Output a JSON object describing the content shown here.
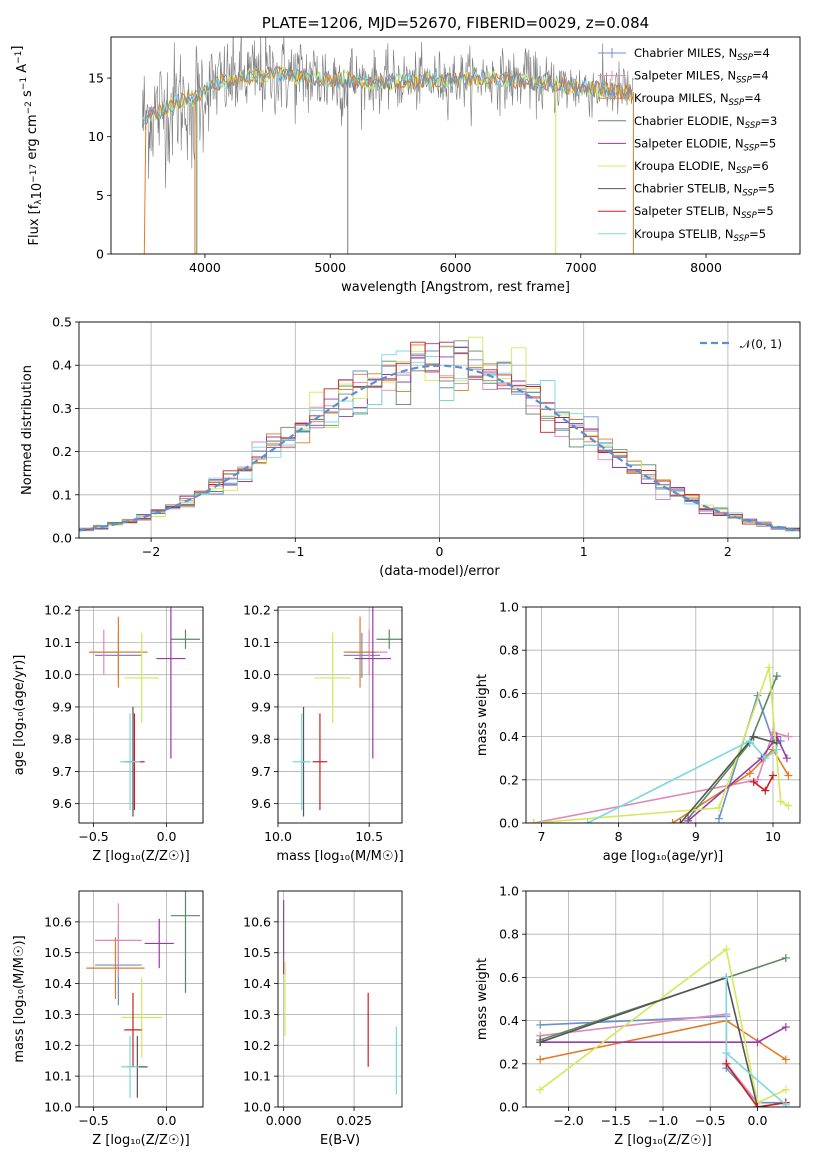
{
  "chart_data": [
    {
      "id": "spectrum",
      "type": "line",
      "title": "PLATE=1206, MJD=52670, FIBERID=0029, z=0.084",
      "xlabel": "wavelength [Angstrom, rest frame]",
      "ylabel": "Flux [f_λ10^-17 erg cm^-2 s^-1 A^-1]",
      "xlim": [
        3250,
        8750
      ],
      "ylim": [
        0,
        18.5
      ],
      "xticks": [
        4000,
        5000,
        6000,
        7000,
        8000
      ],
      "yticks": [
        0,
        5,
        10,
        15
      ],
      "grid": false,
      "legend_position": "top-right",
      "continuum": {
        "x": [
          3500,
          3600,
          3700,
          3800,
          3900,
          4000,
          4100,
          4200,
          4300,
          4400,
          4500,
          4600,
          4700,
          4800,
          4900,
          5000,
          5200,
          5400,
          5600,
          5800,
          6000,
          6200,
          6400,
          6600,
          6800,
          7000,
          7200,
          7400
        ],
        "y": [
          11.5,
          12.0,
          12.5,
          13.0,
          13.3,
          14.0,
          14.6,
          14.8,
          15.0,
          15.2,
          15.3,
          15.3,
          15.2,
          15.1,
          15.0,
          14.9,
          14.8,
          14.7,
          14.7,
          14.8,
          14.9,
          15.0,
          14.9,
          14.6,
          14.4,
          14.2,
          14.0,
          13.8
        ]
      },
      "series": [
        {
          "label": "Chabrier MILES, N",
          "sub": "SSP",
          "suffix": "=4",
          "color": "#6a8fcf",
          "marker": "+"
        },
        {
          "label": "Salpeter MILES, N",
          "sub": "SSP",
          "suffix": "=4",
          "color": "#e088b8",
          "marker": "+"
        },
        {
          "label": "Kroupa MILES, N",
          "sub": "SSP",
          "suffix": "=4",
          "color": "#e07b28",
          "marker": "+"
        },
        {
          "label": "Chabrier ELODIE, N",
          "sub": "SSP",
          "suffix": "=3",
          "color": "#5a8a60",
          "marker": "+"
        },
        {
          "label": "Salpeter ELODIE, N",
          "sub": "SSP",
          "suffix": "=5",
          "color": "#9a3aa8",
          "marker": "+"
        },
        {
          "label": "Kroupa ELODIE, N",
          "sub": "SSP",
          "suffix": "=6",
          "color": "#d4e85a",
          "marker": "+"
        },
        {
          "label": "Chabrier STELIB, N",
          "sub": "SSP",
          "suffix": "=5",
          "color": "#555555",
          "marker": "+"
        },
        {
          "label": "Salpeter STELIB, N",
          "sub": "SSP",
          "suffix": "=5",
          "color": "#c82020",
          "marker": "+"
        },
        {
          "label": "Kroupa STELIB, N",
          "sub": "SSP",
          "suffix": "=5",
          "color": "#7ad8e0",
          "marker": "+"
        }
      ]
    },
    {
      "id": "residuals",
      "type": "line",
      "xlabel": "(data-model)/error",
      "ylabel": "Normed distribution",
      "xlim": [
        -2.5,
        2.5
      ],
      "ylim": [
        0,
        0.5
      ],
      "xticks": [
        -2,
        -1,
        0,
        1,
        2
      ],
      "yticks": [
        0.0,
        0.1,
        0.2,
        0.3,
        0.4,
        0.5
      ],
      "grid": true,
      "legend_position": "top-right",
      "legend_label": "𝒩(0, 1)",
      "normal_curve_color": "#5a8fd6"
    },
    {
      "id": "age-vs-Z",
      "type": "scatter",
      "xlabel": "Z [log₁₀(Z/Z☉)]",
      "ylabel": "age  [log₁₀(age/yr)]",
      "xlim": [
        -0.6,
        0.25
      ],
      "ylim": [
        9.54,
        10.21
      ],
      "xticks": [
        -0.5,
        0.0
      ],
      "yticks": [
        9.6,
        9.7,
        9.8,
        9.9,
        10.0,
        10.1,
        10.2
      ],
      "grid": true,
      "points": [
        {
          "series": 0,
          "x": -0.33,
          "y": 10.06,
          "xerr": 0.16,
          "yerr": 0.07
        },
        {
          "series": 1,
          "x": -0.43,
          "y": 10.07,
          "xerr": 0.1,
          "yerr": 0.07
        },
        {
          "series": 2,
          "x": -0.33,
          "y": 10.07,
          "xerr": 0.2,
          "yerr": 0.11
        },
        {
          "series": 3,
          "x": 0.13,
          "y": 10.11,
          "xerr": 0.1,
          "yerr": 0.03
        },
        {
          "series": 4,
          "x": 0.03,
          "y": 10.05,
          "xerr": 0.1,
          "yerr": 0.31
        },
        {
          "series": 5,
          "x": -0.17,
          "y": 9.99,
          "xerr": 0.12,
          "yerr": 0.14
        },
        {
          "series": 6,
          "x": -0.23,
          "y": 9.73,
          "xerr": 0.03,
          "yerr": 0.17
        },
        {
          "series": 7,
          "x": -0.22,
          "y": 9.73,
          "xerr": 0.07,
          "yerr": 0.15
        },
        {
          "series": 8,
          "x": -0.25,
          "y": 9.73,
          "xerr": 0.07,
          "yerr": 0.15
        }
      ]
    },
    {
      "id": "age-vs-mass",
      "type": "scatter",
      "xlabel": "mass [log₁₀(M/M☉)]",
      "xlim": [
        10.0,
        10.68
      ],
      "ylim": [
        9.54,
        10.21
      ],
      "xticks": [
        10.0,
        10.5
      ],
      "yticks": [
        9.6,
        9.7,
        9.8,
        9.9,
        10.0,
        10.1,
        10.2
      ],
      "grid": true,
      "points": [
        {
          "series": 0,
          "x": 10.46,
          "y": 10.06,
          "xerr": 0.1,
          "yerr": 0.07
        },
        {
          "series": 1,
          "x": 10.5,
          "y": 10.07,
          "xerr": 0.1,
          "yerr": 0.07
        },
        {
          "series": 2,
          "x": 10.45,
          "y": 10.07,
          "xerr": 0.09,
          "yerr": 0.11
        },
        {
          "series": 3,
          "x": 10.61,
          "y": 10.11,
          "xerr": 0.07,
          "yerr": 0.03
        },
        {
          "series": 4,
          "x": 10.52,
          "y": 10.05,
          "xerr": 0.1,
          "yerr": 0.31
        },
        {
          "series": 5,
          "x": 10.3,
          "y": 9.99,
          "xerr": 0.1,
          "yerr": 0.14
        },
        {
          "series": 6,
          "x": 10.14,
          "y": 9.73,
          "xerr": 0.01,
          "yerr": 0.17
        },
        {
          "series": 7,
          "x": 10.23,
          "y": 9.73,
          "xerr": 0.04,
          "yerr": 0.15
        },
        {
          "series": 8,
          "x": 10.13,
          "y": 9.73,
          "xerr": 0.05,
          "yerr": 0.15
        }
      ]
    },
    {
      "id": "weight-vs-age",
      "type": "line",
      "xlabel": "age  [log₁₀(age/yr)]",
      "ylabel": "mass weight",
      "xlim": [
        6.8,
        10.35
      ],
      "ylim": [
        0,
        1.0
      ],
      "xticks": [
        7,
        8,
        9,
        10
      ],
      "yticks": [
        0.0,
        0.2,
        0.4,
        0.6,
        0.8,
        1.0
      ],
      "grid": true,
      "lines": [
        {
          "series": 0,
          "x": [
            9.3,
            9.8,
            10.0,
            10.1
          ],
          "y": [
            0.02,
            0.59,
            0.38,
            0.38
          ]
        },
        {
          "series": 1,
          "x": [
            6.9,
            9.8,
            10.0,
            10.2
          ],
          "y": [
            0.0,
            0.2,
            0.42,
            0.4
          ]
        },
        {
          "series": 2,
          "x": [
            8.7,
            9.7,
            10.0,
            10.2
          ],
          "y": [
            0.0,
            0.23,
            0.34,
            0.22
          ]
        },
        {
          "series": 3,
          "x": [
            8.9,
            9.7,
            10.05
          ],
          "y": [
            0.02,
            0.37,
            0.68
          ]
        },
        {
          "series": 4,
          "x": [
            8.9,
            9.85,
            10.05,
            10.18
          ],
          "y": [
            0.01,
            0.3,
            0.4,
            0.3
          ]
        },
        {
          "series": 5,
          "x": [
            6.9,
            9.3,
            9.95,
            10.1,
            10.2
          ],
          "y": [
            0.0,
            0.07,
            0.72,
            0.1,
            0.08
          ]
        },
        {
          "series": 6,
          "x": [
            8.8,
            9.75,
            10.05
          ],
          "y": [
            0.0,
            0.4,
            0.37
          ]
        },
        {
          "series": 7,
          "x": [
            9.75,
            9.9,
            10.0
          ],
          "y": [
            0.19,
            0.15,
            0.22
          ]
        },
        {
          "series": 8,
          "x": [
            7.6,
            9.7,
            9.9,
            10.05
          ],
          "y": [
            0.0,
            0.38,
            0.3,
            0.34
          ]
        }
      ]
    },
    {
      "id": "mass-vs-Z",
      "type": "scatter",
      "xlabel": "Z [log₁₀(Z/Z☉)]",
      "ylabel": "mass [log₁₀(M/M☉)]",
      "xlim": [
        -0.6,
        0.25
      ],
      "ylim": [
        10.0,
        10.7
      ],
      "xticks": [
        -0.5,
        0.0
      ],
      "yticks": [
        10.0,
        10.1,
        10.2,
        10.3,
        10.4,
        10.5,
        10.6
      ],
      "grid": true,
      "points": [
        {
          "series": 0,
          "x": -0.33,
          "y": 10.46,
          "xerr": 0.16,
          "yerr": 0.13
        },
        {
          "series": 1,
          "x": -0.33,
          "y": 10.54,
          "xerr": 0.16,
          "yerr": 0.12
        },
        {
          "series": 2,
          "x": -0.35,
          "y": 10.45,
          "xerr": 0.2,
          "yerr": 0.1
        },
        {
          "series": 3,
          "x": 0.13,
          "y": 10.62,
          "xerr": 0.1,
          "yerr": 0.25
        },
        {
          "series": 4,
          "x": -0.05,
          "y": 10.53,
          "xerr": 0.1,
          "yerr": 0.08
        },
        {
          "series": 5,
          "x": -0.17,
          "y": 10.29,
          "xerr": 0.14,
          "yerr": 0.13
        },
        {
          "series": 6,
          "x": -0.2,
          "y": 10.13,
          "xerr": 0.07,
          "yerr": 0.1
        },
        {
          "series": 7,
          "x": -0.23,
          "y": 10.25,
          "xerr": 0.06,
          "yerr": 0.12
        },
        {
          "series": 8,
          "x": -0.25,
          "y": 10.13,
          "xerr": 0.06,
          "yerr": 0.1
        }
      ]
    },
    {
      "id": "mass-vs-ebv",
      "type": "scatter",
      "xlabel": "E(B-V)",
      "xlim": [
        -0.002,
        0.042
      ],
      "ylim": [
        10.0,
        10.7
      ],
      "xticks": [
        0.0,
        0.025
      ],
      "yticks": [
        10.0,
        10.1,
        10.2,
        10.3,
        10.4,
        10.5,
        10.6
      ],
      "grid": true,
      "points": [
        {
          "series": 4,
          "x": 0.0,
          "y": 10.55,
          "xerr": 0,
          "yerr": 0.12
        },
        {
          "series": 5,
          "x": 0.0005,
          "y": 10.35,
          "xerr": 0,
          "yerr": 0.12
        },
        {
          "series": 7,
          "x": 0.03,
          "y": 10.25,
          "xerr": 0,
          "yerr": 0.12
        },
        {
          "series": 8,
          "x": 0.04,
          "y": 10.15,
          "xerr": 0,
          "yerr": 0.11
        }
      ]
    },
    {
      "id": "weight-vs-Z",
      "type": "line",
      "xlabel": "Z [log₁₀(Z/Z☉)]",
      "ylabel": "mass weight",
      "xlim": [
        -2.45,
        0.45
      ],
      "ylim": [
        0,
        1.0
      ],
      "xticks": [
        -2.0,
        -1.5,
        -1.0,
        -0.5,
        0.0
      ],
      "yticks": [
        0.0,
        0.2,
        0.4,
        0.6,
        0.8,
        1.0
      ],
      "grid": true,
      "lines": [
        {
          "series": 0,
          "x": [
            -2.3,
            -0.33,
            -0.33,
            0.0,
            0.3
          ],
          "y": [
            0.38,
            0.42,
            0.18,
            0.02,
            0.02
          ]
        },
        {
          "series": 1,
          "x": [
            -2.3,
            -0.33,
            -0.33,
            0.0
          ],
          "y": [
            0.33,
            0.43,
            0.2,
            0.02
          ]
        },
        {
          "series": 2,
          "x": [
            -2.3,
            -0.33,
            0.3
          ],
          "y": [
            0.22,
            0.4,
            0.22
          ]
        },
        {
          "series": 3,
          "x": [
            -2.3,
            0.3
          ],
          "y": [
            0.31,
            0.69
          ]
        },
        {
          "series": 4,
          "x": [
            -2.3,
            0.0,
            0.3
          ],
          "y": [
            0.3,
            0.3,
            0.37
          ]
        },
        {
          "series": 5,
          "x": [
            -2.3,
            -0.33,
            0.0,
            0.3
          ],
          "y": [
            0.08,
            0.73,
            0.02,
            0.08
          ]
        },
        {
          "series": 6,
          "x": [
            -2.3,
            -0.33,
            0.0
          ],
          "y": [
            0.3,
            0.6,
            0.0
          ]
        },
        {
          "series": 7,
          "x": [
            -0.33,
            0.0,
            0.3
          ],
          "y": [
            0.2,
            0.0,
            0.02
          ]
        },
        {
          "series": 8,
          "x": [
            -0.33,
            -0.33,
            0.3
          ],
          "y": [
            0.6,
            0.25,
            0.01
          ]
        }
      ]
    }
  ]
}
